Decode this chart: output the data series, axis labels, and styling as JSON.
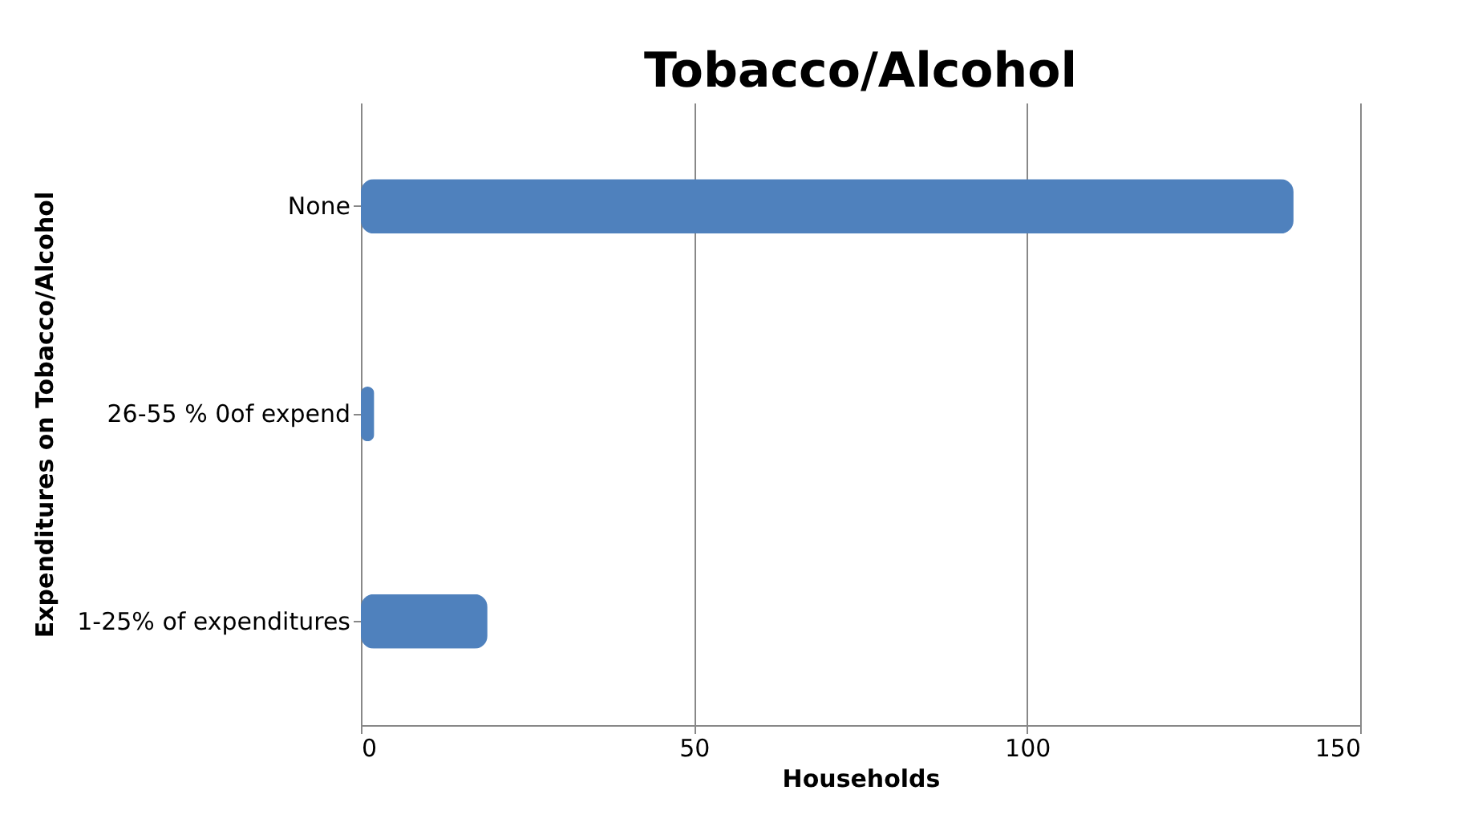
{
  "chart_data": {
    "type": "bar",
    "orientation": "horizontal",
    "title": "Tobacco/Alcohol",
    "xlabel": "Households",
    "ylabel": "Expenditures on Tobacco/Alcohol",
    "categories": [
      "None",
      "26-55 % 0of expend",
      "1-25% of expenditures"
    ],
    "values": [
      140,
      2,
      19
    ],
    "color": "#4f81bd",
    "xlim": [
      0,
      150
    ],
    "xticks": [
      0,
      50,
      100,
      150
    ],
    "grid": "x"
  }
}
